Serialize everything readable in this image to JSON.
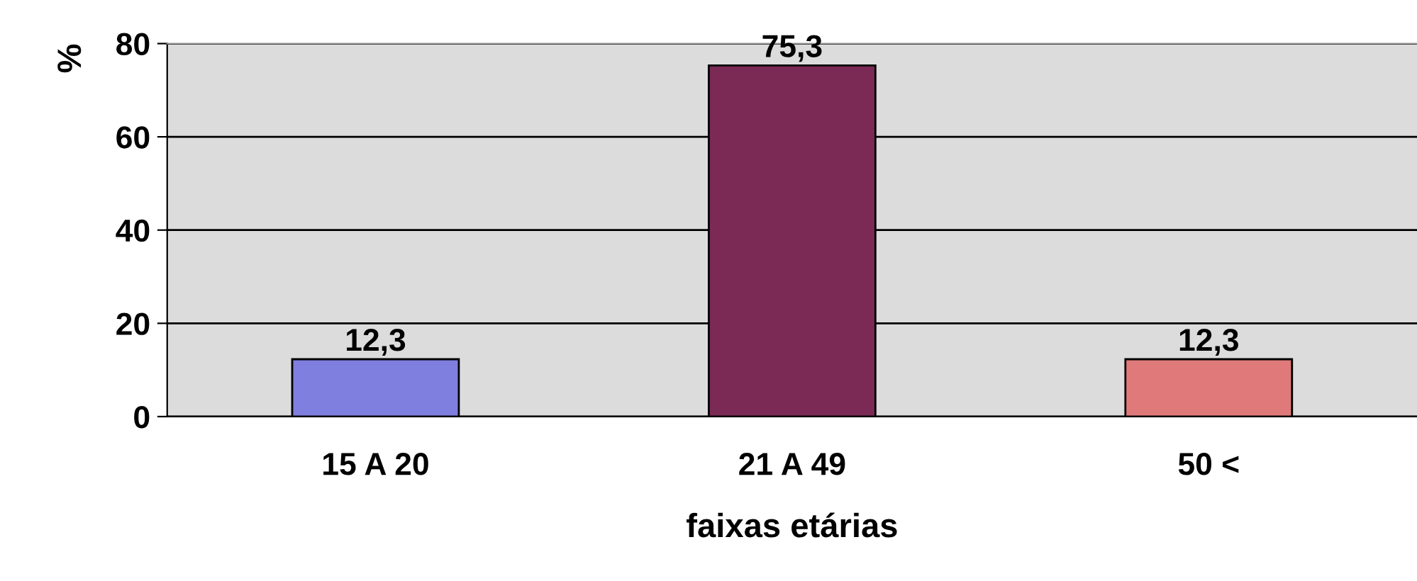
{
  "chart_data": {
    "type": "bar",
    "xlabel": "faixas etárias",
    "ylabel": "%",
    "categories": [
      "15 A 20",
      "21 A 49",
      "50 <"
    ],
    "values": [
      12.3,
      75.3,
      12.3
    ],
    "colors": [
      "#7f7fe0",
      "#7a2a55",
      "#e07a7a"
    ],
    "value_labels": [
      "12,3",
      "75,3",
      "12,3"
    ],
    "ylim": [
      0,
      80
    ],
    "yticks": [
      0,
      20,
      40,
      60,
      80
    ],
    "grid": "y",
    "legend": false
  }
}
